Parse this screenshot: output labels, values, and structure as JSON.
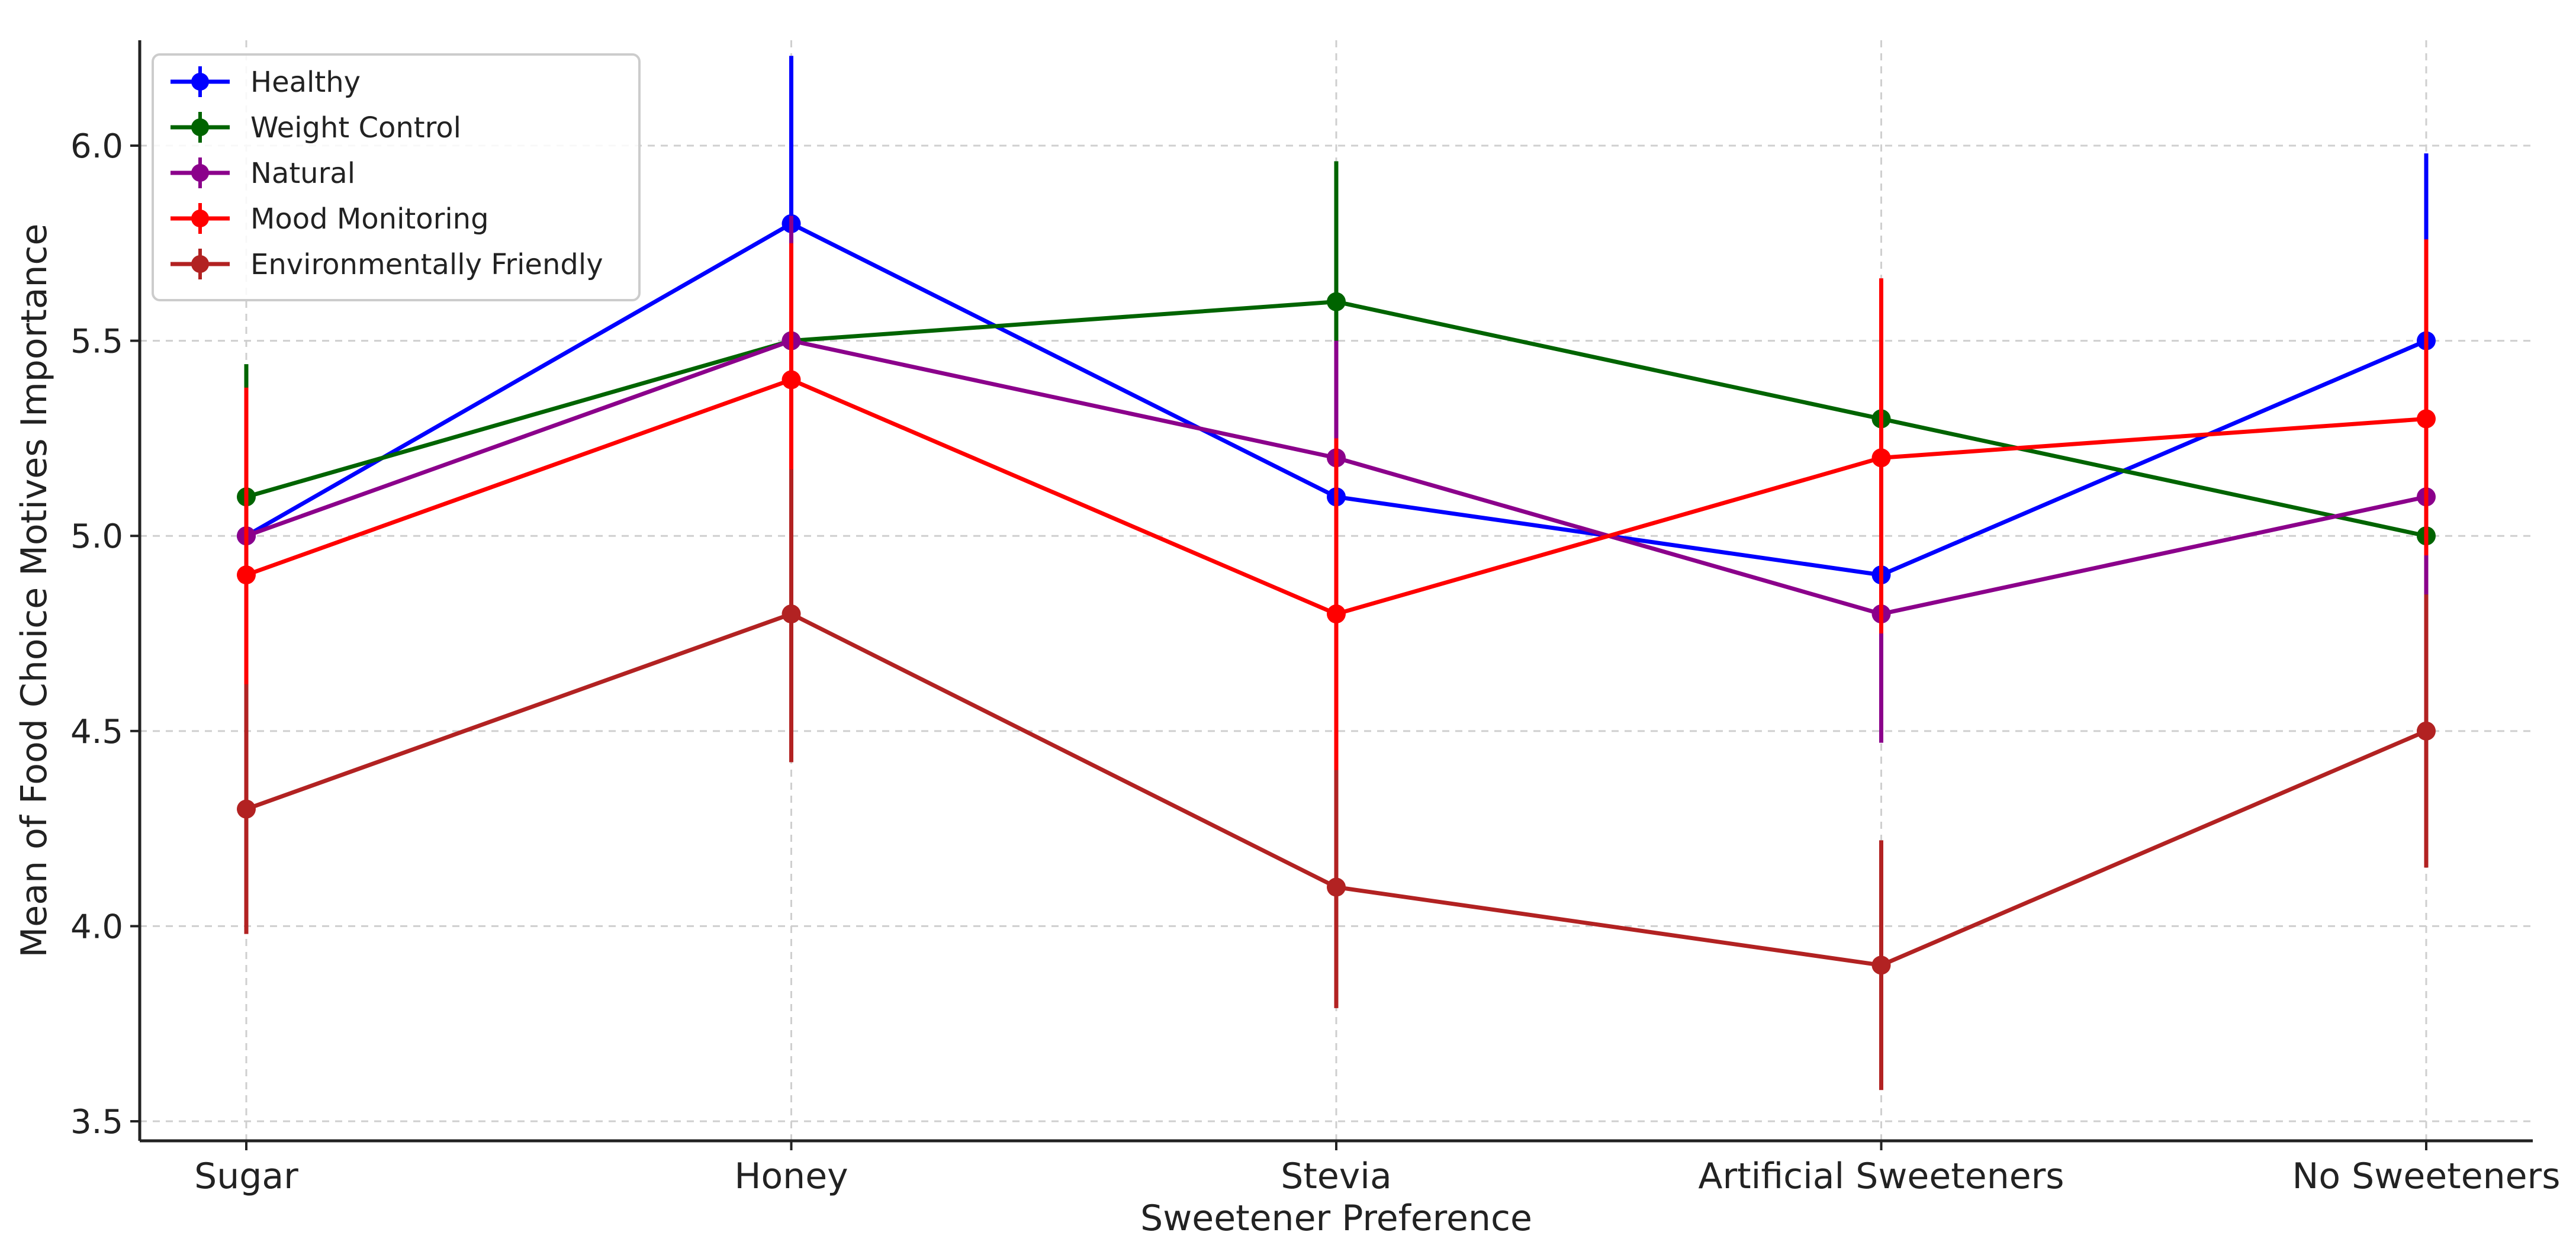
{
  "chart_data": {
    "type": "line",
    "title": "",
    "xlabel": "Sweetener Preference",
    "ylabel": "Mean of Food Choice Motives Importance",
    "categories": [
      "Sugar",
      "Honey",
      "Stevia",
      "Artificial Sweeteners",
      "No Sweeteners"
    ],
    "ylim": [
      3.45,
      6.27
    ],
    "yticks": [
      3.5,
      4.0,
      4.5,
      5.0,
      5.5,
      6.0
    ],
    "ytick_labels": [
      "3.5",
      "4.0",
      "4.5",
      "5.0",
      "5.5",
      "6.0"
    ],
    "grid": true,
    "legend_position": "top-left",
    "error_bars": true,
    "series": [
      {
        "name": "Healthy",
        "color": "#0000ff",
        "values": [
          5.0,
          5.8,
          5.1,
          4.9,
          5.5
        ],
        "err_low": [
          4.7,
          5.35,
          4.78,
          4.62,
          5.02
        ],
        "err_high": [
          5.28,
          6.23,
          5.28,
          5.1,
          5.98
        ]
      },
      {
        "name": "Weight Control",
        "color": "#006400",
        "values": [
          5.1,
          5.5,
          5.6,
          5.3,
          5.0
        ],
        "err_low": [
          4.78,
          5.12,
          5.22,
          4.95,
          4.7
        ],
        "err_high": [
          5.44,
          5.78,
          5.96,
          5.55,
          5.25
        ]
      },
      {
        "name": "Natural",
        "color": "#8b008b",
        "values": [
          5.0,
          5.5,
          5.2,
          4.8,
          5.1
        ],
        "err_low": [
          4.65,
          5.2,
          4.78,
          4.47,
          4.85
        ],
        "err_high": [
          5.3,
          5.82,
          5.5,
          5.08,
          5.4
        ]
      },
      {
        "name": "Mood Monitoring",
        "color": "#ff0000",
        "values": [
          4.9,
          5.4,
          4.8,
          5.2,
          5.3
        ],
        "err_low": [
          4.5,
          5.05,
          4.35,
          4.75,
          4.95
        ],
        "err_high": [
          5.38,
          5.75,
          5.25,
          5.66,
          5.76
        ]
      },
      {
        "name": "Environmentally Friendly",
        "color": "#b22222",
        "values": [
          4.3,
          4.8,
          4.1,
          3.9,
          4.5
        ],
        "err_low": [
          3.98,
          4.42,
          3.79,
          3.58,
          4.15
        ],
        "err_high": [
          4.62,
          5.17,
          4.4,
          4.22,
          4.85
        ]
      }
    ]
  }
}
